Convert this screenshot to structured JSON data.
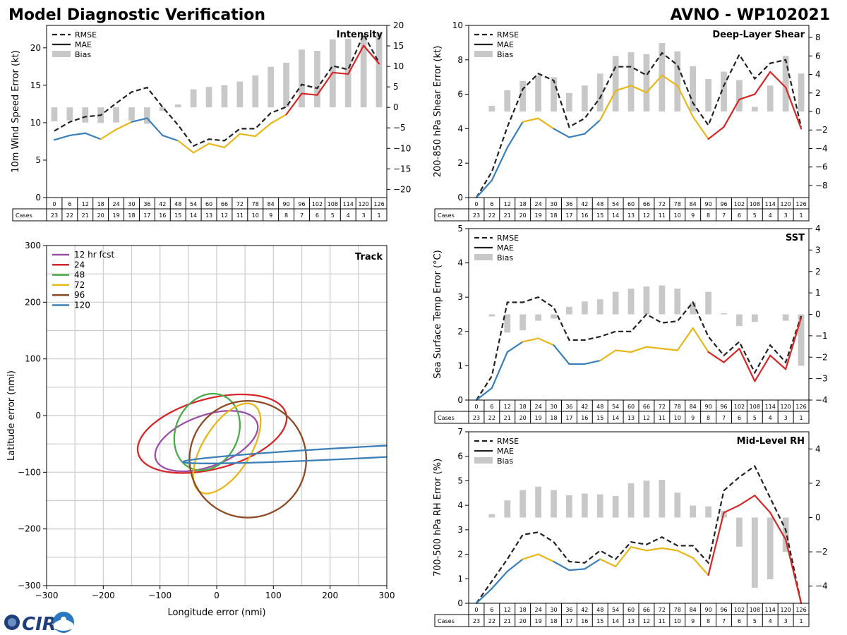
{
  "header": {
    "left_title": "Model Diagnostic Verification",
    "right_title": "AVNO - WP102021"
  },
  "logo": {
    "text": "CIRA"
  },
  "colors": {
    "rmse": "#222222",
    "mae": "#222222",
    "bias": "#c8c8c8",
    "blue": "#3a7fb8",
    "yellow": "#e7b71a",
    "red": "#d62728",
    "purple": "#9b4fa8",
    "green": "#4aab4a",
    "brown": "#8c4a25",
    "grid": "#cccccc"
  },
  "legend": {
    "rmse": "RMSE",
    "mae": "MAE",
    "bias": "Bias"
  },
  "cases_label": "Cases",
  "chart_data": [
    {
      "id": "intensity",
      "type": "line",
      "title": "Intensity",
      "ylabel": "10m Wind Speed Error (kt)",
      "ylim": [
        0,
        23
      ],
      "yticks": [
        0,
        5,
        10,
        15,
        20
      ],
      "y2lim": [
        -22,
        20
      ],
      "y2ticks": [
        -20,
        -15,
        -10,
        -5,
        0,
        5,
        10,
        15,
        20
      ],
      "x": [
        0,
        6,
        12,
        18,
        24,
        30,
        36,
        42,
        48,
        54,
        60,
        66,
        72,
        78,
        84,
        90,
        96,
        102,
        108,
        114,
        120,
        126
      ],
      "cases": [
        23,
        22,
        21,
        20,
        19,
        18,
        17,
        16,
        15,
        14,
        13,
        12,
        11,
        10,
        9,
        8,
        7,
        6,
        5,
        4,
        3,
        1
      ],
      "rmse": [
        8.9,
        10.1,
        10.8,
        11.0,
        12.6,
        14.1,
        14.7,
        12.1,
        9.7,
        6.9,
        7.8,
        7.6,
        9.2,
        9.2,
        11.3,
        12.1,
        15.1,
        14.6,
        17.6,
        17.1,
        21.8,
        18.0
      ],
      "mae": [
        7.7,
        8.3,
        8.6,
        7.8,
        9.1,
        10.1,
        10.6,
        8.3,
        7.6,
        6.0,
        7.2,
        6.7,
        8.5,
        8.2,
        9.9,
        11.1,
        13.9,
        13.7,
        16.7,
        16.5,
        20.3,
        17.9
      ],
      "bias": [
        -3.4,
        -3.2,
        -3.7,
        -3.8,
        -3.7,
        -3.2,
        -4.0,
        -0.8,
        0.7,
        4.4,
        5.0,
        5.4,
        6.3,
        7.8,
        9.9,
        10.9,
        14.1,
        13.8,
        16.6,
        16.7,
        17.8,
        18.2
      ]
    },
    {
      "id": "shear",
      "type": "line",
      "title": "Deep-Layer Shear",
      "ylabel": "200-850 hPa Shear Error (kt)",
      "ylim": [
        0,
        10
      ],
      "yticks": [
        0,
        2,
        4,
        6,
        8,
        10
      ],
      "y2lim": [
        -9.3,
        9.3
      ],
      "y2ticks": [
        -8,
        -6,
        -4,
        -2,
        0,
        2,
        4,
        6,
        8
      ],
      "x": [
        0,
        6,
        12,
        18,
        24,
        30,
        36,
        42,
        48,
        54,
        60,
        66,
        72,
        78,
        84,
        90,
        96,
        102,
        108,
        114,
        120,
        126
      ],
      "cases": [
        23,
        22,
        21,
        20,
        19,
        18,
        17,
        16,
        15,
        14,
        13,
        12,
        11,
        10,
        9,
        8,
        7,
        6,
        5,
        4,
        3,
        1
      ],
      "rmse": [
        0.0,
        1.5,
        4.1,
        6.3,
        7.2,
        6.8,
        4.1,
        4.6,
        5.8,
        7.6,
        7.6,
        7.1,
        8.4,
        7.7,
        5.5,
        4.2,
        6.5,
        8.3,
        6.9,
        7.8,
        8.0,
        4.1
      ],
      "mae": [
        0.0,
        1.0,
        2.9,
        4.4,
        4.6,
        4.0,
        3.5,
        3.7,
        4.5,
        6.2,
        6.5,
        6.1,
        7.1,
        6.5,
        4.7,
        3.4,
        4.1,
        5.7,
        6.0,
        7.3,
        6.4,
        4.0
      ],
      "bias": [
        0.0,
        0.6,
        2.3,
        3.3,
        3.9,
        3.7,
        2.0,
        2.8,
        4.1,
        6.0,
        6.4,
        6.2,
        7.4,
        6.5,
        4.9,
        3.5,
        4.3,
        3.4,
        0.5,
        2.8,
        6.0,
        4.1
      ]
    },
    {
      "id": "sst",
      "type": "line",
      "title": "SST",
      "ylabel": "Sea Surface Temp Error (°C)",
      "ylim": [
        0,
        5
      ],
      "yticks": [
        0,
        1,
        2,
        3,
        4,
        5
      ],
      "y2lim": [
        -4,
        4
      ],
      "y2ticks": [
        -4,
        -3,
        -2,
        -1,
        0,
        1,
        2,
        3,
        4
      ],
      "x": [
        0,
        6,
        12,
        18,
        24,
        30,
        36,
        42,
        48,
        54,
        60,
        66,
        72,
        78,
        84,
        90,
        96,
        102,
        108,
        114,
        120,
        126
      ],
      "cases": [
        23,
        22,
        21,
        20,
        19,
        18,
        17,
        16,
        15,
        14,
        13,
        12,
        11,
        10,
        9,
        8,
        7,
        6,
        5,
        4,
        3,
        1
      ],
      "rmse": [
        0.0,
        0.7,
        2.85,
        2.85,
        3.0,
        2.7,
        1.75,
        1.75,
        1.85,
        2.0,
        2.0,
        2.5,
        2.25,
        2.3,
        2.85,
        1.85,
        1.3,
        1.7,
        0.8,
        1.6,
        1.1,
        2.45
      ],
      "mae": [
        0.0,
        0.35,
        1.4,
        1.7,
        1.8,
        1.6,
        1.05,
        1.05,
        1.15,
        1.45,
        1.4,
        1.55,
        1.5,
        1.45,
        2.1,
        1.4,
        1.1,
        1.5,
        0.55,
        1.3,
        0.9,
        2.4
      ],
      "bias": [
        0.0,
        -0.1,
        -0.85,
        -0.75,
        -0.3,
        -0.2,
        0.35,
        0.6,
        0.7,
        1.05,
        1.2,
        1.3,
        1.35,
        1.2,
        0.55,
        1.05,
        0.05,
        -0.55,
        -0.35,
        0.0,
        -0.3,
        -2.4
      ]
    },
    {
      "id": "rh",
      "type": "line",
      "title": "Mid-Level RH",
      "ylabel": "700-500 hPa RH Error (%)",
      "ylim": [
        0,
        7
      ],
      "yticks": [
        0,
        1,
        2,
        3,
        4,
        5,
        6,
        7
      ],
      "y2lim": [
        -5,
        5
      ],
      "y2ticks": [
        -4,
        -2,
        0,
        2,
        4
      ],
      "x": [
        0,
        6,
        12,
        18,
        24,
        30,
        36,
        42,
        48,
        54,
        60,
        66,
        72,
        78,
        84,
        90,
        96,
        102,
        108,
        114,
        120,
        126
      ],
      "cases": [
        23,
        22,
        21,
        20,
        19,
        18,
        17,
        16,
        15,
        14,
        13,
        12,
        11,
        10,
        9,
        8,
        7,
        6,
        5,
        4,
        3,
        1
      ],
      "rmse": [
        0.0,
        0.9,
        1.8,
        2.8,
        2.9,
        2.5,
        1.7,
        1.65,
        2.15,
        1.8,
        2.5,
        2.4,
        2.7,
        2.35,
        2.35,
        1.65,
        4.6,
        5.15,
        5.6,
        4.3,
        3.0,
        0.0
      ],
      "mae": [
        0.0,
        0.6,
        1.3,
        1.8,
        2.0,
        1.7,
        1.35,
        1.4,
        1.8,
        1.5,
        2.3,
        2.15,
        2.25,
        2.15,
        1.85,
        1.15,
        3.7,
        4.0,
        4.4,
        3.7,
        2.6,
        0.0
      ],
      "bias": [
        0.0,
        0.2,
        1.0,
        1.6,
        1.8,
        1.6,
        1.3,
        1.4,
        1.35,
        1.25,
        2.0,
        2.15,
        2.2,
        1.45,
        0.7,
        0.65,
        0.4,
        -1.7,
        -4.1,
        -3.6,
        -2.0,
        0.0
      ]
    },
    {
      "id": "track",
      "type": "scatter",
      "title": "Track",
      "xlabel": "Longitude error (nmi)",
      "ylabel": "Latitude error (nmi)",
      "xlim": [
        -300,
        300
      ],
      "ylim": [
        -300,
        300
      ],
      "ticks": [
        -300,
        -200,
        -100,
        0,
        100,
        200,
        300
      ],
      "grid": [
        -250,
        -200,
        -150,
        -100,
        -50,
        0,
        50,
        100,
        150,
        200,
        250
      ],
      "ellipses": [
        {
          "label": "12 hr fcst",
          "color": "#9b4fa8",
          "cx": -18,
          "cy": -45,
          "rx": 95,
          "ry": 45,
          "rot": -20
        },
        {
          "label": "24",
          "color": "#d62728",
          "cx": -8,
          "cy": -32,
          "rx": 135,
          "ry": 62,
          "rot": -15
        },
        {
          "label": "48",
          "color": "#4aab4a",
          "cx": -17,
          "cy": -29,
          "rx": 70,
          "ry": 55,
          "rot": -65
        },
        {
          "label": "72",
          "color": "#e7b71a",
          "cx": 18,
          "cy": -58,
          "rx": 90,
          "ry": 42,
          "rot": -58
        },
        {
          "label": "96",
          "color": "#8c4a25",
          "cx": 55,
          "cy": -77,
          "rx": 103,
          "ry": 103,
          "rot": 0
        },
        {
          "label": "120",
          "color": "#3a7fb8",
          "cx": 280,
          "cy": -64,
          "rx": 340,
          "ry": 10,
          "rot": -3
        }
      ]
    }
  ]
}
